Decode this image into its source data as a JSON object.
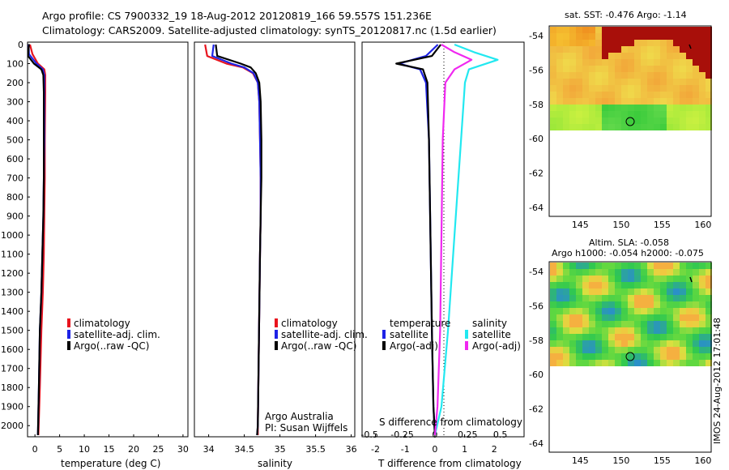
{
  "header": {
    "line1": "Argo profile: CS 7900332_19 18-Aug-2012 20120819_166 59.557S 151.236E",
    "line2": "Climatology: CARS2009. Satellite-adjusted climatology: synTS_20120817.nc (1.5d earlier)"
  },
  "depth_ticks": [
    0,
    100,
    200,
    300,
    400,
    500,
    600,
    700,
    800,
    900,
    1000,
    1100,
    1200,
    1300,
    1400,
    1500,
    1600,
    1700,
    1800,
    1900,
    2000
  ],
  "colors": {
    "climatology": "#e8141e",
    "satellite": "#1e23e6",
    "argo": "#000000",
    "cyan": "#22e8f0",
    "magenta": "#f028f0"
  },
  "panel_temperature": {
    "xlabel": "temperature (deg C)",
    "xticks": [
      0,
      5,
      10,
      15,
      20,
      25,
      30
    ],
    "legend": [
      "climatology",
      "satellite-adj. clim.",
      "Argo(..raw -QC)"
    ]
  },
  "panel_salinity": {
    "xlabel": "salinity",
    "xticks": [
      "34",
      "34.5",
      "35",
      "35.5",
      "36"
    ],
    "legend": [
      "climatology",
      "satellite-adj. clim.",
      "Argo(..raw -QC)"
    ],
    "note1": "Argo Australia",
    "note2": "PI: Susan Wijffels"
  },
  "panel_diff": {
    "xlabel": "T difference from climatology",
    "xticks": [
      "-2",
      "-1",
      "0",
      "1",
      "2"
    ],
    "top_axis_label": "S difference from climatology",
    "top_ticks": [
      "-0.5",
      "-0.25",
      "0",
      "0.25",
      "0.5"
    ],
    "legend_temperature_title": "temperature",
    "legend_salinity_title": "salinity",
    "legend_items": [
      "satellite",
      "Argo(-adj)",
      "satellite",
      "Argo(-adj)"
    ]
  },
  "map_sst": {
    "title": "sat. SST: -0.476 Argo: -1.14",
    "yticks": [
      "-54",
      "-56",
      "-58",
      "-60",
      "-62",
      "-64"
    ],
    "xticks": [
      "145",
      "150",
      "155",
      "160"
    ]
  },
  "map_sla": {
    "title1": "Altim. SLA: -0.058",
    "title2": "Argo h1000: -0.054 h2000: -0.075",
    "yticks": [
      "-54",
      "-56",
      "-58",
      "-60",
      "-62",
      "-64"
    ],
    "xticks": [
      "145",
      "150",
      "155",
      "160"
    ]
  },
  "stamp": "IMOS 24-Aug-2012 17:01:48",
  "chart_data": [
    {
      "type": "line",
      "xlabel": "temperature (deg C)",
      "xlim": [
        -1.5,
        31
      ],
      "ylim": [
        2050,
        0
      ],
      "series": [
        {
          "name": "climatology",
          "x": [
            -1.0,
            -0.5,
            0.6,
            1.9,
            2.1,
            2.1,
            2.0,
            2.0,
            1.9,
            1.8,
            1.6,
            1.3,
            1.0,
            0.7
          ],
          "y": [
            0,
            50,
            100,
            130,
            160,
            250,
            500,
            700,
            900,
            1100,
            1300,
            1500,
            1800,
            2050
          ]
        },
        {
          "name": "satellite-adj. clim.",
          "x": [
            -1.3,
            -1.2,
            0.3,
            1.6,
            1.9,
            1.9,
            1.9,
            1.8,
            1.7,
            1.5,
            1.3,
            1.0,
            0.8,
            0.6
          ],
          "y": [
            0,
            50,
            100,
            130,
            160,
            250,
            500,
            700,
            900,
            1100,
            1300,
            1500,
            1800,
            2050
          ]
        },
        {
          "name": "Argo(..raw -QC)",
          "x": [
            -1.2,
            -1.4,
            -0.2,
            1.3,
            1.7,
            1.8,
            1.8,
            1.8,
            1.7,
            1.5,
            1.3,
            1.0,
            0.8,
            0.6
          ],
          "y": [
            0,
            60,
            100,
            130,
            160,
            250,
            500,
            700,
            900,
            1100,
            1300,
            1500,
            1800,
            2050
          ]
        }
      ]
    },
    {
      "type": "line",
      "xlabel": "salinity",
      "xlim": [
        33.8,
        36.05
      ],
      "ylim": [
        2050,
        0
      ],
      "series": [
        {
          "name": "climatology",
          "x": [
            33.95,
            33.98,
            34.25,
            34.48,
            34.62,
            34.69,
            34.71,
            34.72,
            34.73,
            34.73,
            34.72,
            34.71,
            34.7,
            34.69,
            34.69
          ],
          "y": [
            0,
            60,
            100,
            120,
            150,
            200,
            300,
            500,
            700,
            900,
            1100,
            1400,
            1700,
            2000,
            2050
          ]
        },
        {
          "name": "satellite-adj. clim.",
          "x": [
            34.07,
            34.05,
            34.32,
            34.5,
            34.63,
            34.69,
            34.71,
            34.72,
            34.73,
            34.73,
            34.72,
            34.71,
            34.7,
            34.69,
            34.68
          ],
          "y": [
            0,
            60,
            100,
            120,
            150,
            200,
            300,
            500,
            700,
            900,
            1100,
            1400,
            1700,
            2000,
            2050
          ]
        },
        {
          "name": "Argo(..raw -QC)",
          "x": [
            34.1,
            34.12,
            34.45,
            34.59,
            34.66,
            34.71,
            34.73,
            34.74,
            34.74,
            34.73,
            34.72,
            34.71,
            34.7,
            34.69,
            34.68
          ],
          "y": [
            0,
            60,
            100,
            120,
            150,
            200,
            300,
            500,
            700,
            900,
            1100,
            1400,
            1700,
            2000,
            2050
          ]
        }
      ]
    },
    {
      "type": "line",
      "xlabel": "T difference from climatology",
      "x2label": "S difference from climatology",
      "xlim": [
        -2.45,
        3.0
      ],
      "ylim": [
        2050,
        0
      ],
      "series": [
        {
          "name": "temperature satellite",
          "x": [
            0.1,
            -0.3,
            -1.2,
            -0.5,
            -0.3,
            -0.2,
            -0.15,
            -0.1,
            -0.05,
            0.0
          ],
          "y": [
            0,
            60,
            100,
            130,
            200,
            500,
            1000,
            1500,
            1900,
            2050
          ]
        },
        {
          "name": "temperature Argo(-adj)",
          "x": [
            0.2,
            -0.1,
            -1.3,
            -0.4,
            -0.25,
            -0.2,
            -0.15,
            -0.1,
            -0.05,
            0.0
          ],
          "y": [
            0,
            60,
            100,
            130,
            200,
            500,
            1000,
            1500,
            1900,
            2050
          ]
        },
        {
          "name": "salinity satellite",
          "x": [
            0.15,
            0.3,
            0.48,
            0.26,
            0.23,
            0.2,
            0.15,
            0.1,
            0.05,
            0.0
          ],
          "y": [
            0,
            40,
            80,
            130,
            200,
            500,
            1000,
            1500,
            1900,
            2050
          ]
        },
        {
          "name": "salinity Argo(-adj)",
          "x": [
            0.05,
            0.15,
            0.28,
            0.15,
            0.08,
            0.06,
            0.05,
            0.04,
            0.02,
            0.0
          ],
          "y": [
            0,
            40,
            80,
            130,
            200,
            500,
            1000,
            1500,
            1900,
            2050
          ]
        }
      ]
    }
  ]
}
